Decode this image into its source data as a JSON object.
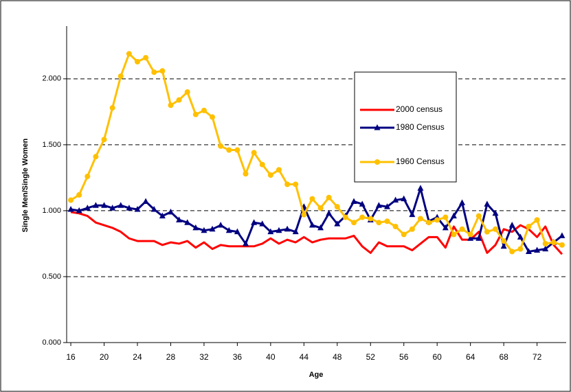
{
  "chart_data": {
    "type": "line",
    "x_label": "Age",
    "y_label": "Single Men/Single Women",
    "x": [
      16,
      17,
      18,
      19,
      20,
      21,
      22,
      23,
      24,
      25,
      26,
      27,
      28,
      29,
      30,
      31,
      32,
      33,
      34,
      35,
      36,
      37,
      38,
      39,
      40,
      41,
      42,
      43,
      44,
      45,
      46,
      47,
      48,
      49,
      50,
      51,
      52,
      53,
      54,
      55,
      56,
      57,
      58,
      59,
      60,
      61,
      62,
      63,
      64,
      65,
      66,
      67,
      68,
      69,
      70,
      71,
      72,
      73,
      74,
      75
    ],
    "xlim": [
      15.5,
      75.5
    ],
    "xticks": [
      16,
      20,
      24,
      28,
      32,
      36,
      40,
      44,
      48,
      52,
      56,
      60,
      64,
      68,
      72
    ],
    "ylim": [
      0,
      2.4
    ],
    "yticks": [
      {
        "value": 0,
        "label": "0.000"
      },
      {
        "value": 0.5,
        "label": "0.500"
      },
      {
        "value": 1,
        "label": "1.000"
      },
      {
        "value": 1.5,
        "label": "1.500"
      },
      {
        "value": 2,
        "label": "2.000"
      }
    ],
    "grid": true,
    "legend": "upper right",
    "series": [
      {
        "name": "2000 census",
        "color": "#ff0000",
        "marker": "none",
        "values": [
          0.99,
          0.98,
          0.96,
          0.91,
          0.89,
          0.87,
          0.84,
          0.79,
          0.77,
          0.77,
          0.77,
          0.74,
          0.76,
          0.75,
          0.77,
          0.72,
          0.76,
          0.71,
          0.74,
          0.73,
          0.73,
          0.73,
          0.73,
          0.75,
          0.79,
          0.75,
          0.78,
          0.76,
          0.8,
          0.76,
          0.78,
          0.79,
          0.79,
          0.79,
          0.81,
          0.73,
          0.68,
          0.76,
          0.73,
          0.73,
          0.73,
          0.7,
          0.75,
          0.8,
          0.8,
          0.72,
          0.88,
          0.78,
          0.78,
          0.84,
          0.68,
          0.74,
          0.86,
          0.84,
          0.89,
          0.86,
          0.8,
          0.88,
          0.74,
          0.67
        ]
      },
      {
        "name": "1980 Census",
        "color": "#000080",
        "marker": "triangle",
        "values": [
          1.01,
          1.0,
          1.02,
          1.04,
          1.04,
          1.02,
          1.04,
          1.02,
          1.01,
          1.07,
          1.01,
          0.96,
          0.99,
          0.93,
          0.91,
          0.87,
          0.85,
          0.86,
          0.89,
          0.85,
          0.84,
          0.75,
          0.91,
          0.9,
          0.84,
          0.85,
          0.86,
          0.84,
          1.03,
          0.89,
          0.87,
          0.98,
          0.9,
          0.96,
          1.07,
          1.05,
          0.93,
          1.04,
          1.03,
          1.08,
          1.09,
          0.97,
          1.17,
          0.92,
          0.95,
          0.87,
          0.96,
          1.06,
          0.79,
          0.79,
          1.05,
          0.98,
          0.73,
          0.89,
          0.8,
          0.69,
          0.7,
          0.71,
          0.76,
          0.81
        ]
      },
      {
        "name": "1960 Census",
        "color": "#ffc000",
        "marker": "circle",
        "values": [
          1.08,
          1.12,
          1.26,
          1.41,
          1.54,
          1.78,
          2.02,
          2.19,
          2.13,
          2.16,
          2.05,
          2.06,
          1.8,
          1.84,
          1.9,
          1.73,
          1.76,
          1.71,
          1.49,
          1.46,
          1.46,
          1.28,
          1.44,
          1.35,
          1.27,
          1.31,
          1.2,
          1.2,
          0.97,
          1.09,
          1.02,
          1.1,
          1.03,
          0.95,
          0.91,
          0.95,
          0.94,
          0.91,
          0.92,
          0.88,
          0.82,
          0.86,
          0.94,
          0.91,
          0.93,
          0.95,
          0.82,
          0.86,
          0.82,
          0.96,
          0.84,
          0.86,
          0.77,
          0.69,
          0.71,
          0.88,
          0.93,
          0.75,
          0.76,
          0.74
        ]
      }
    ]
  }
}
